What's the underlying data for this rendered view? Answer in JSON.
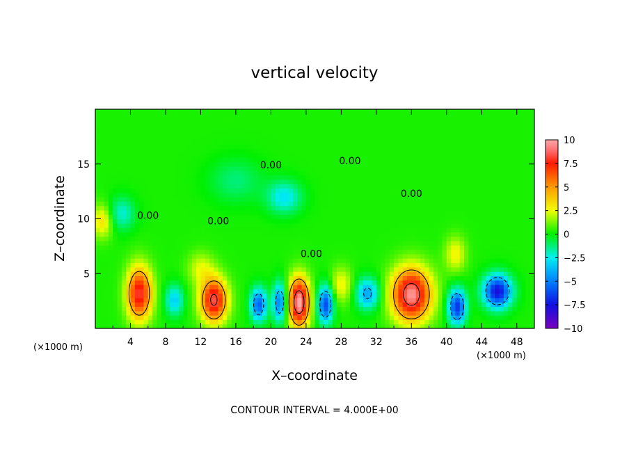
{
  "chart_data": {
    "type": "heatmap",
    "title": "vertical velocity",
    "xlabel": "X–coordinate",
    "ylabel": "Z–coordinate",
    "x_unit": "(×1000 m)",
    "y_unit": "(×1000 m)",
    "xlim": [
      0,
      50
    ],
    "ylim": [
      0,
      20
    ],
    "x_ticks": [
      4,
      8,
      12,
      16,
      20,
      24,
      28,
      32,
      36,
      40,
      44,
      48
    ],
    "y_ticks": [
      5,
      10,
      15
    ],
    "colorbar": {
      "min": -10,
      "max": 10,
      "tick_values": [
        10,
        7.5,
        5,
        2.5,
        0,
        -2.5,
        -5,
        -7.5,
        -10
      ],
      "tick_labels": [
        "10",
        "7.5",
        "5",
        "2.5",
        "0",
        "−2.5",
        "−5",
        "−7.5",
        "−10"
      ]
    },
    "contour_interval_text": "CONTOUR INTERVAL = 4.000E+00",
    "contour_labels": [
      {
        "text": "0.00",
        "x": 6.0,
        "z": 10.0
      },
      {
        "text": "0.00",
        "x": 14.0,
        "z": 9.5
      },
      {
        "text": "0.00",
        "x": 20.0,
        "z": 14.6
      },
      {
        "text": "0.00",
        "x": 29.0,
        "z": 15.0
      },
      {
        "text": "0.00",
        "x": 24.6,
        "z": 6.5
      },
      {
        "text": "0.00",
        "x": 36.0,
        "z": 12.0
      }
    ],
    "features": [
      {
        "x": 5.0,
        "z": 3.2,
        "value": 8.0,
        "wx": 1.4,
        "wz": 2.4
      },
      {
        "x": 13.5,
        "z": 2.6,
        "value": 8.5,
        "wx": 1.5,
        "wz": 2.0
      },
      {
        "x": 23.2,
        "z": 2.4,
        "value": 10.0,
        "wx": 1.2,
        "wz": 2.2
      },
      {
        "x": 36.0,
        "z": 3.1,
        "value": 9.5,
        "wx": 2.2,
        "wz": 2.4
      },
      {
        "x": 0.8,
        "z": 9.8,
        "value": 3.0,
        "wx": 1.2,
        "wz": 1.5
      },
      {
        "x": 18.6,
        "z": 2.2,
        "value": -6.0,
        "wx": 0.9,
        "wz": 1.5
      },
      {
        "x": 21.0,
        "z": 2.4,
        "value": -5.5,
        "wx": 0.8,
        "wz": 1.8
      },
      {
        "x": 26.2,
        "z": 2.2,
        "value": -6.5,
        "wx": 0.9,
        "wz": 1.7
      },
      {
        "x": 31.0,
        "z": 3.2,
        "value": -4.5,
        "wx": 1.3,
        "wz": 1.4
      },
      {
        "x": 41.2,
        "z": 2.0,
        "value": -7.0,
        "wx": 1.0,
        "wz": 1.6
      },
      {
        "x": 45.8,
        "z": 3.4,
        "value": -8.0,
        "wx": 1.6,
        "wz": 1.5
      },
      {
        "x": 9.0,
        "z": 2.6,
        "value": -3.5,
        "wx": 1.0,
        "wz": 1.4
      },
      {
        "x": 3.0,
        "z": 10.5,
        "value": -2.5,
        "wx": 1.5,
        "wz": 1.5
      },
      {
        "x": 21.5,
        "z": 12.0,
        "value": -3.0,
        "wx": 2.0,
        "wz": 1.5
      },
      {
        "x": 16.0,
        "z": 13.5,
        "value": -1.5,
        "wx": 3.0,
        "wz": 2.0
      },
      {
        "x": 41.0,
        "z": 6.8,
        "value": 2.5,
        "wx": 1.2,
        "wz": 1.6
      },
      {
        "x": 12.0,
        "z": 5.5,
        "value": 2.0,
        "wx": 1.5,
        "wz": 1.5
      },
      {
        "x": 28.0,
        "z": 4.0,
        "value": 2.5,
        "wx": 1.2,
        "wz": 1.6
      }
    ]
  }
}
